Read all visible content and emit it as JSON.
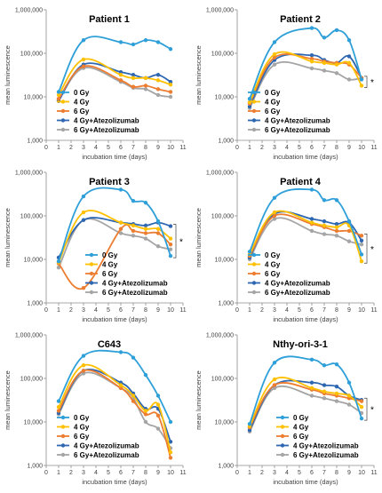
{
  "colors": {
    "0 Gy": "#2e9fd8",
    "4 Gy": "#ffc000",
    "6 Gy": "#ed7d31",
    "4 Gy+Atezolizumab": "#2e67b1",
    "6 Gy+Atezolizumab": "#a5a5a5"
  },
  "chart_data": [
    {
      "type": "line",
      "title": "Patient 1",
      "xlabel": "incubation time (days)",
      "ylabel": "mean luminescence",
      "yscale": "log",
      "ylim": [
        1000,
        1000000
      ],
      "xlim": [
        0,
        11
      ],
      "x": [
        1,
        3,
        6,
        7,
        8,
        9,
        10
      ],
      "yticks": [
        "1,000",
        "10,000",
        "100,000",
        "1,000,000"
      ],
      "xticks": [
        "0",
        "1",
        "2",
        "3",
        "4",
        "5",
        "6",
        "7",
        "8",
        "9",
        "10",
        "11"
      ],
      "legend_position": "bottom-left",
      "series": [
        {
          "name": "0 Gy",
          "values": [
            13000,
            200000,
            180000,
            160000,
            200000,
            180000,
            125000
          ]
        },
        {
          "name": "4 Gy",
          "values": [
            11000,
            72000,
            32000,
            27000,
            27000,
            24000,
            19000
          ]
        },
        {
          "name": "6 Gy",
          "values": [
            9000,
            50000,
            24000,
            17000,
            18000,
            15000,
            13000
          ]
        },
        {
          "name": "4 Gy+Atezolizumab",
          "values": [
            8000,
            55000,
            37000,
            32000,
            27000,
            32000,
            22000
          ]
        },
        {
          "name": "6 Gy+Atezolizumab",
          "values": [
            8500,
            46000,
            22000,
            16000,
            15000,
            11000,
            10000
          ]
        }
      ],
      "annotations": []
    },
    {
      "type": "line",
      "title": "Patient 2",
      "xlabel": "incubation time (days)",
      "ylabel": "mean luminescence",
      "yscale": "log",
      "ylim": [
        1000,
        1000000
      ],
      "xlim": [
        0,
        11
      ],
      "x": [
        1,
        3,
        6,
        7,
        8,
        9,
        10
      ],
      "yticks": [
        "1,000",
        "10,000",
        "100,000",
        "1,000,000"
      ],
      "xticks": [
        "0",
        "1",
        "2",
        "3",
        "4",
        "5",
        "6",
        "7",
        "8",
        "9",
        "10",
        "11"
      ],
      "legend_position": "bottom-left",
      "series": [
        {
          "name": "0 Gy",
          "values": [
            9000,
            180000,
            380000,
            230000,
            340000,
            200000,
            25000
          ]
        },
        {
          "name": "4 Gy",
          "values": [
            7500,
            95000,
            65000,
            60000,
            55000,
            60000,
            18000
          ]
        },
        {
          "name": "6 Gy",
          "values": [
            7000,
            80000,
            75000,
            65000,
            60000,
            55000,
            27000
          ]
        },
        {
          "name": "4 Gy+Atezolizumab",
          "values": [
            6000,
            70000,
            90000,
            70000,
            60000,
            85000,
            27000
          ]
        },
        {
          "name": "6 Gy+Atezolizumab",
          "values": [
            5500,
            55000,
            45000,
            40000,
            35000,
            25000,
            27000
          ]
        }
      ],
      "annotations": [
        "*"
      ]
    },
    {
      "type": "line",
      "title": "Patient 3",
      "xlabel": "incubation time (days)",
      "ylabel": "mean luminescence",
      "yscale": "log",
      "ylim": [
        1000,
        1000000
      ],
      "xlim": [
        0,
        11
      ],
      "x": [
        1,
        3,
        6,
        7,
        8,
        9,
        10
      ],
      "yticks": [
        "1,000",
        "10,000",
        "100,000",
        "1,000,000"
      ],
      "xticks": [
        "0",
        "1",
        "2",
        "3",
        "4",
        "5",
        "6",
        "7",
        "8",
        "9",
        "10",
        "11"
      ],
      "legend_position": "bottom-right",
      "series": [
        {
          "name": "0 Gy",
          "values": [
            9000,
            280000,
            400000,
            220000,
            200000,
            75000,
            12000
          ]
        },
        {
          "name": "4 Gy",
          "values": [
            8500,
            120000,
            70000,
            60000,
            50000,
            50000,
            30000
          ]
        },
        {
          "name": "6 Gy",
          "values": [
            8000,
            2200,
            50000,
            45000,
            40000,
            40000,
            22000
          ]
        },
        {
          "name": "4 Gy+Atezolizumab",
          "values": [
            11000,
            80000,
            70000,
            65000,
            60000,
            70000,
            58000
          ]
        },
        {
          "name": "6 Gy+Atezolizumab",
          "values": [
            6500,
            80000,
            40000,
            35000,
            30000,
            20000,
            17000
          ]
        }
      ],
      "annotations": [
        "*"
      ]
    },
    {
      "type": "line",
      "title": "Patient 4",
      "xlabel": "incubation time (days)",
      "ylabel": "mean luminescence",
      "yscale": "log",
      "ylim": [
        1000,
        1000000
      ],
      "xlim": [
        0,
        11
      ],
      "x": [
        1,
        3,
        6,
        7,
        8,
        9,
        10
      ],
      "yticks": [
        "1,000",
        "10,000",
        "100,000",
        "1,000,000"
      ],
      "xticks": [
        "0",
        "1",
        "2",
        "3",
        "4",
        "5",
        "6",
        "7",
        "8",
        "9",
        "10",
        "11"
      ],
      "legend_position": "bottom-left",
      "series": [
        {
          "name": "0 Gy",
          "values": [
            15000,
            260000,
            400000,
            230000,
            230000,
            75000,
            13000
          ]
        },
        {
          "name": "4 Gy",
          "values": [
            13000,
            120000,
            70000,
            60000,
            55000,
            60000,
            9000
          ]
        },
        {
          "name": "6 Gy",
          "values": [
            12000,
            100000,
            65000,
            55000,
            45000,
            45000,
            35000
          ]
        },
        {
          "name": "4 Gy+Atezolizumab",
          "values": [
            11000,
            110000,
            85000,
            75000,
            65000,
            70000,
            27000
          ]
        },
        {
          "name": "6 Gy+Atezolizumab",
          "values": [
            10000,
            85000,
            45000,
            38000,
            35000,
            26000,
            22000
          ]
        }
      ],
      "annotations": [
        "*"
      ]
    },
    {
      "type": "line",
      "title": "C643",
      "xlabel": "incubation time (days)",
      "ylabel": "mean luminescence",
      "yscale": "log",
      "ylim": [
        1000,
        1000000
      ],
      "xlim": [
        0,
        11
      ],
      "x": [
        1,
        3,
        6,
        7,
        8,
        9,
        10
      ],
      "yticks": [
        "1,000",
        "10,000",
        "100,000",
        "1,000,000"
      ],
      "xticks": [
        "0",
        "1",
        "2",
        "3",
        "4",
        "5",
        "6",
        "7",
        "8",
        "9",
        "10",
        "11"
      ],
      "legend_position": "bottom-left",
      "series": [
        {
          "name": "0 Gy",
          "values": [
            30000,
            330000,
            400000,
            300000,
            120000,
            40000,
            10000
          ]
        },
        {
          "name": "4 Gy",
          "values": [
            22000,
            200000,
            70000,
            40000,
            18000,
            25000,
            2000
          ]
        },
        {
          "name": "6 Gy",
          "values": [
            18000,
            150000,
            60000,
            30000,
            15000,
            14000,
            1500
          ]
        },
        {
          "name": "4 Gy+Atezolizumab",
          "values": [
            16000,
            150000,
            80000,
            45000,
            20000,
            20000,
            3500
          ]
        },
        {
          "name": "6 Gy+Atezolizumab",
          "values": [
            15000,
            130000,
            60000,
            35000,
            10000,
            7000,
            2500
          ]
        }
      ],
      "annotations": []
    },
    {
      "type": "line",
      "title": "Nthy-ori-3-1",
      "xlabel": "incubation time (days)",
      "ylabel": "mean luminescence",
      "yscale": "log",
      "ylim": [
        1000,
        1000000
      ],
      "xlim": [
        0,
        11
      ],
      "x": [
        1,
        3,
        6,
        7,
        8,
        9,
        10
      ],
      "yticks": [
        "1,000",
        "10,000",
        "100,000",
        "1,000,000"
      ],
      "xticks": [
        "0",
        "1",
        "2",
        "3",
        "4",
        "5",
        "6",
        "7",
        "8",
        "9",
        "10",
        "11"
      ],
      "legend_position": "bottom-right",
      "series": [
        {
          "name": "0 Gy",
          "values": [
            9000,
            230000,
            270000,
            200000,
            210000,
            80000,
            12000
          ]
        },
        {
          "name": "4 Gy",
          "values": [
            8000,
            95000,
            60000,
            50000,
            45000,
            40000,
            22000
          ]
        },
        {
          "name": "6 Gy",
          "values": [
            7500,
            70000,
            55000,
            45000,
            40000,
            35000,
            30000
          ]
        },
        {
          "name": "4 Gy+Atezolizumab",
          "values": [
            6500,
            70000,
            80000,
            70000,
            65000,
            40000,
            32000
          ]
        },
        {
          "name": "6 Gy+Atezolizumab",
          "values": [
            6000,
            60000,
            40000,
            35000,
            30000,
            25000,
            16000
          ]
        }
      ],
      "annotations": [
        "*"
      ]
    }
  ]
}
